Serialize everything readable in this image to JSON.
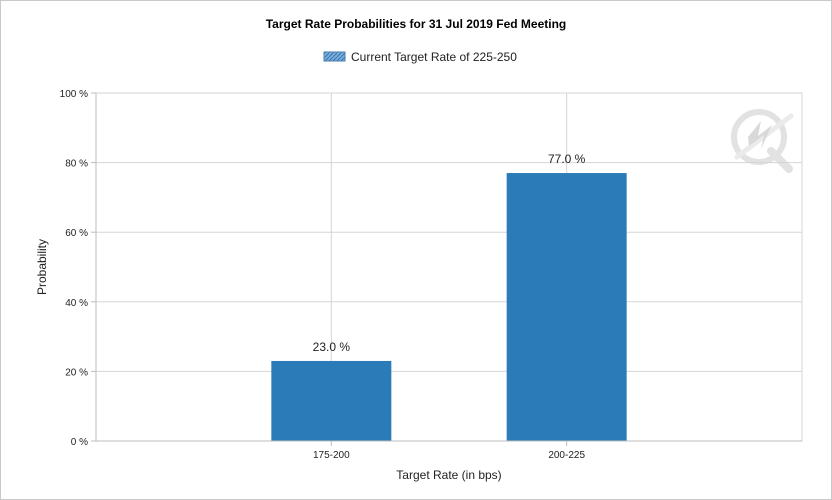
{
  "chart_data": {
    "type": "bar",
    "title": "Target Rate Probabilities for 31 Jul 2019 Fed Meeting",
    "xlabel": "Target Rate (in bps)",
    "ylabel": "Probability",
    "categories": [
      "175-200",
      "200-225"
    ],
    "series": [
      {
        "name": "Current Target Rate of 225-250",
        "values": [
          23.0,
          77.0
        ],
        "data_labels": [
          "23.0 %",
          "77.0 %"
        ]
      }
    ],
    "ylim": [
      0,
      100
    ],
    "yticks": [
      0,
      20,
      40,
      60,
      80,
      100
    ],
    "ytick_labels": [
      "0 %",
      "20 %",
      "40 %",
      "60 %",
      "80 %",
      "100 %"
    ],
    "grid": true,
    "legend_position": "top-center",
    "colors": {
      "bar": "#2b7bb9",
      "grid": "#d5d5d5",
      "axis": "#bdbdbd",
      "watermark": "#e6e6e6"
    }
  },
  "watermark": {
    "icon": "quote-q-icon"
  }
}
